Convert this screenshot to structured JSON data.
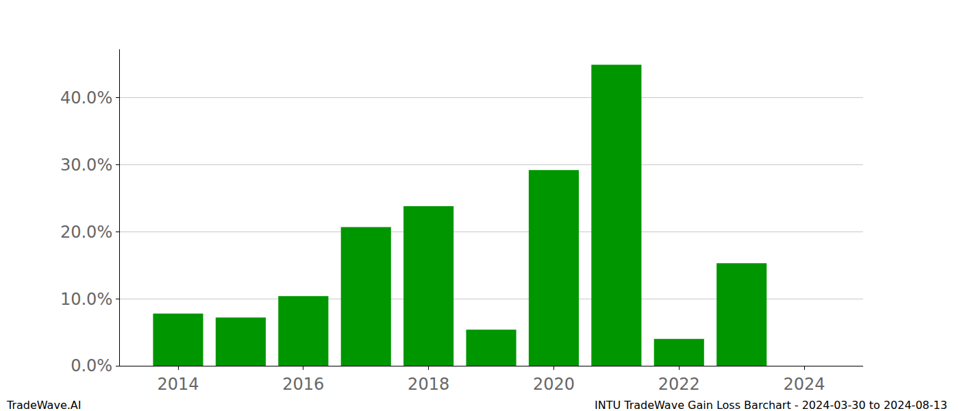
{
  "chart_data": {
    "type": "bar",
    "x": [
      2014,
      2015,
      2016,
      2017,
      2018,
      2019,
      2020,
      2021,
      2022,
      2023
    ],
    "values": [
      7.8,
      7.2,
      10.4,
      20.7,
      23.8,
      5.4,
      29.2,
      44.9,
      4.0,
      15.3
    ],
    "color": "#009600",
    "xlim": [
      2013.07,
      2024.94
    ],
    "xticks": [
      2014,
      2016,
      2018,
      2020,
      2022,
      2024
    ],
    "ylim": [
      0,
      47.2
    ],
    "yticks": [
      {
        "value": 0,
        "label": "0.0%"
      },
      {
        "value": 10,
        "label": "10.0%"
      },
      {
        "value": 20,
        "label": "20.0%"
      },
      {
        "value": 30,
        "label": "30.0%"
      },
      {
        "value": 40,
        "label": "40.0%"
      }
    ],
    "grid": true,
    "annotations": [
      "TradeWave.AI",
      "INTU TradeWave Gain Loss Barchart - 2024-03-30 to 2024-08-13"
    ]
  }
}
